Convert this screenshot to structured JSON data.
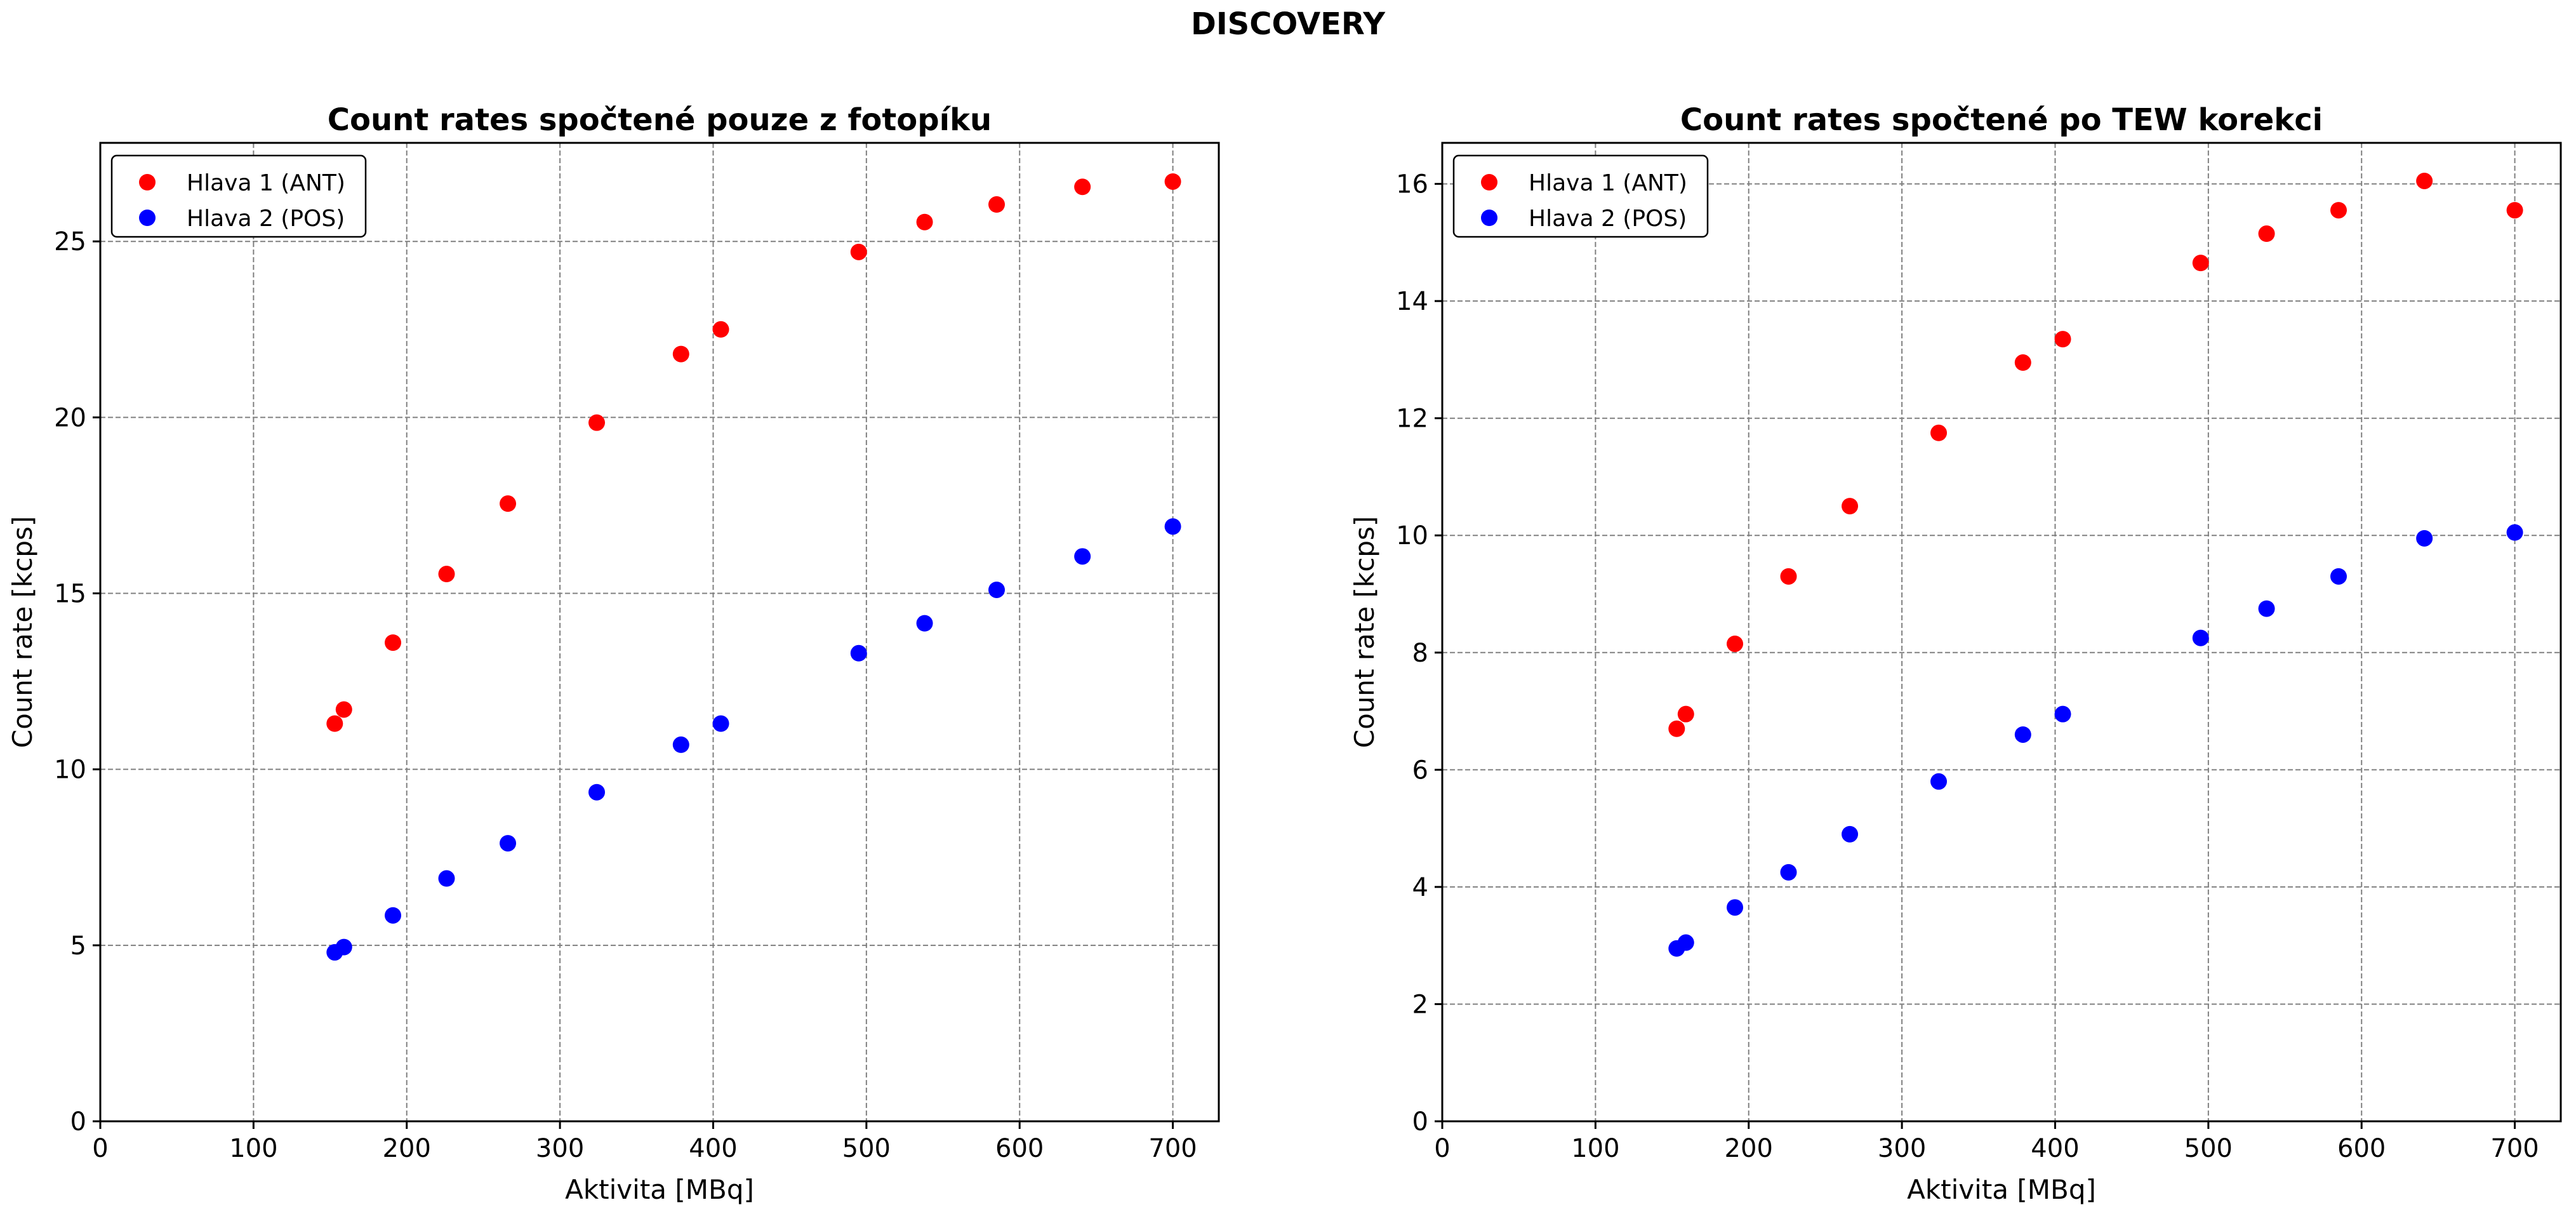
{
  "figure_title": "DISCOVERY",
  "chart_data": [
    {
      "type": "scatter",
      "title": "Count rates spočtené pouze z fotopíku",
      "xlabel": "Aktivita [MBq]",
      "ylabel": "Count rate [kcps]",
      "xlim": [
        0,
        730
      ],
      "ylim": [
        0,
        27.8
      ],
      "x_ticks": [
        0,
        100,
        200,
        300,
        400,
        500,
        600,
        700
      ],
      "y_ticks": [
        0,
        5,
        10,
        15,
        20,
        25
      ],
      "grid": true,
      "legend_position": "top-left",
      "x": [
        153,
        159,
        191,
        226,
        266,
        324,
        379,
        405,
        495,
        538,
        585,
        641,
        700
      ],
      "series": [
        {
          "name": "Hlava 1 (ANT)",
          "color": "#ff0000",
          "values": [
            11.3,
            11.7,
            13.6,
            15.55,
            17.55,
            19.85,
            21.8,
            22.5,
            24.7,
            25.55,
            26.05,
            26.55,
            26.7
          ]
        },
        {
          "name": "Hlava 2 (POS)",
          "color": "#0000ff",
          "values": [
            4.8,
            4.95,
            5.85,
            6.9,
            7.9,
            9.35,
            10.7,
            11.3,
            13.3,
            14.15,
            15.1,
            16.05,
            16.9
          ]
        }
      ]
    },
    {
      "type": "scatter",
      "title": "Count rates spočtené po TEW korekci",
      "xlabel": "Aktivita [MBq]",
      "ylabel": "Count rate [kcps]",
      "xlim": [
        0,
        730
      ],
      "ylim": [
        0,
        16.7
      ],
      "x_ticks": [
        0,
        100,
        200,
        300,
        400,
        500,
        600,
        700
      ],
      "y_ticks": [
        0,
        2,
        4,
        6,
        8,
        10,
        12,
        14,
        16
      ],
      "grid": true,
      "legend_position": "top-left",
      "x": [
        153,
        159,
        191,
        226,
        266,
        324,
        379,
        405,
        495,
        538,
        585,
        641,
        700
      ],
      "series": [
        {
          "name": "Hlava 1 (ANT)",
          "color": "#ff0000",
          "values": [
            6.7,
            6.95,
            8.15,
            9.3,
            10.5,
            11.75,
            12.95,
            13.35,
            14.65,
            15.15,
            15.55,
            16.05,
            15.55
          ]
        },
        {
          "name": "Hlava 2 (POS)",
          "color": "#0000ff",
          "values": [
            2.95,
            3.05,
            3.65,
            4.25,
            4.9,
            5.8,
            6.6,
            6.95,
            8.25,
            8.75,
            9.3,
            9.95,
            10.05
          ]
        }
      ]
    }
  ]
}
